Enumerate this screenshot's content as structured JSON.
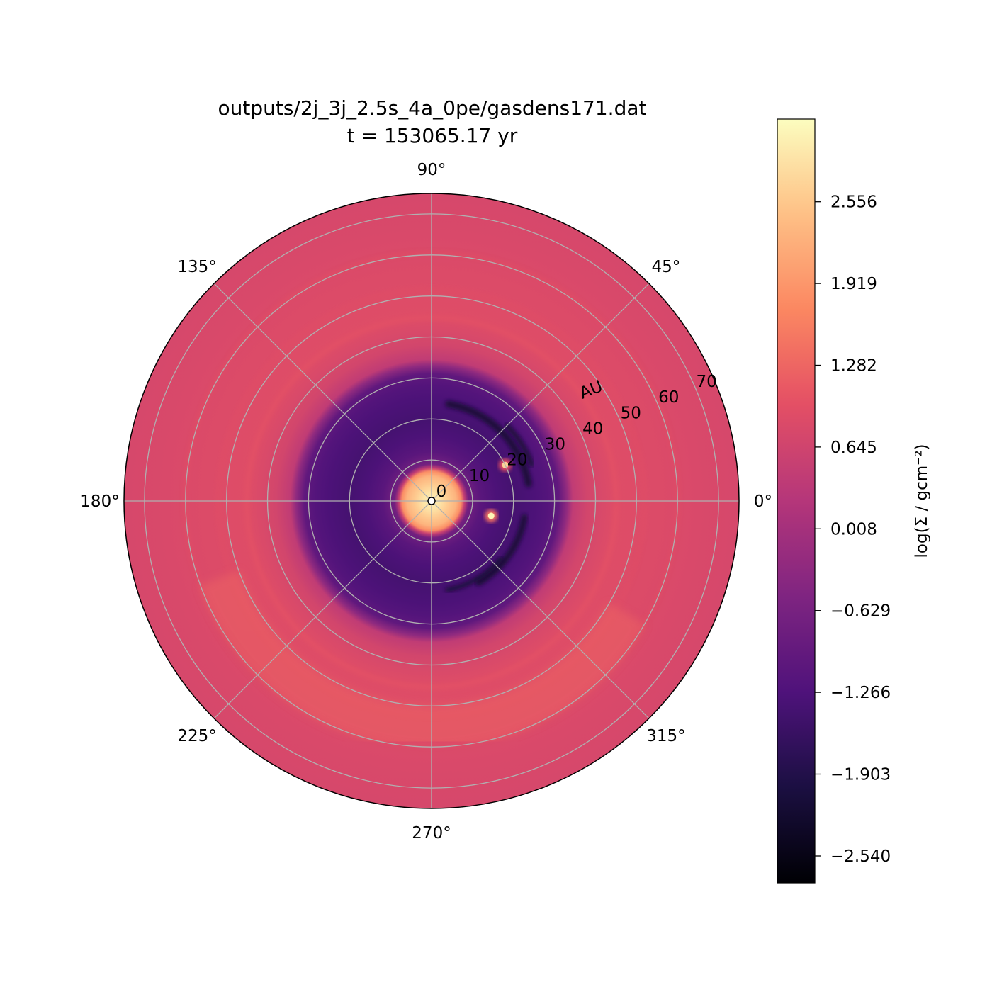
{
  "chart_data": {
    "type": "heatmap",
    "projection": "polar",
    "title_lines": [
      "outputs/2j_3j_2.5s_4a_0pe/gasdens171.dat",
      "t = 153065.17 yr"
    ],
    "radial_label": "AU",
    "rlim": [
      0,
      75
    ],
    "radial_ticks": [
      0,
      10,
      20,
      30,
      40,
      50,
      60,
      70
    ],
    "radial_tick_labels": [
      "0",
      "10",
      "20",
      "30",
      "40",
      "50",
      "60",
      "70"
    ],
    "angle_ticks": [
      0,
      45,
      90,
      135,
      180,
      225,
      270,
      315
    ],
    "angle_tick_labels": [
      "0°",
      "45°",
      "90°",
      "135°",
      "180°",
      "225°",
      "270°",
      "315°"
    ],
    "grid": true,
    "colormap": "magma",
    "colorbar": {
      "label": "log(Σ / gcm⁻²)",
      "range": [
        -2.75,
        3.2
      ],
      "ticks": [
        2.556,
        1.919,
        1.282,
        0.645,
        0.008,
        -0.629,
        -1.266,
        -1.903,
        -2.54
      ],
      "tick_labels": [
        "2.556",
        "1.919",
        "1.282",
        "0.645",
        "0.008",
        "−0.629",
        "−1.266",
        "−1.903",
        "−2.540"
      ]
    },
    "density_profile": [
      {
        "r": 0,
        "value": 3.0
      },
      {
        "r": 2,
        "value": 2.9
      },
      {
        "r": 4,
        "value": 2.6
      },
      {
        "r": 6,
        "value": 2.3
      },
      {
        "r": 7.2,
        "value": 1.8
      },
      {
        "r": 8,
        "value": 0.5
      },
      {
        "r": 9,
        "value": -0.7
      },
      {
        "r": 12,
        "value": -1.1
      },
      {
        "r": 16,
        "value": -1.3
      },
      {
        "r": 20,
        "value": -1.4
      },
      {
        "r": 25,
        "value": -1.3
      },
      {
        "r": 28,
        "value": -1.2
      },
      {
        "r": 31,
        "value": -1.0
      },
      {
        "r": 33,
        "value": -0.3
      },
      {
        "r": 34.5,
        "value": 0.4
      },
      {
        "r": 38,
        "value": 0.7
      },
      {
        "r": 45,
        "value": 0.9
      },
      {
        "r": 55,
        "value": 0.85
      },
      {
        "r": 65,
        "value": 0.8
      },
      {
        "r": 75,
        "value": 0.75
      }
    ],
    "features": [
      {
        "name": "planet",
        "r": 20,
        "theta": 26,
        "value": 2.2
      },
      {
        "name": "planet",
        "r": 15,
        "theta": -14,
        "value": 2.6
      }
    ]
  }
}
